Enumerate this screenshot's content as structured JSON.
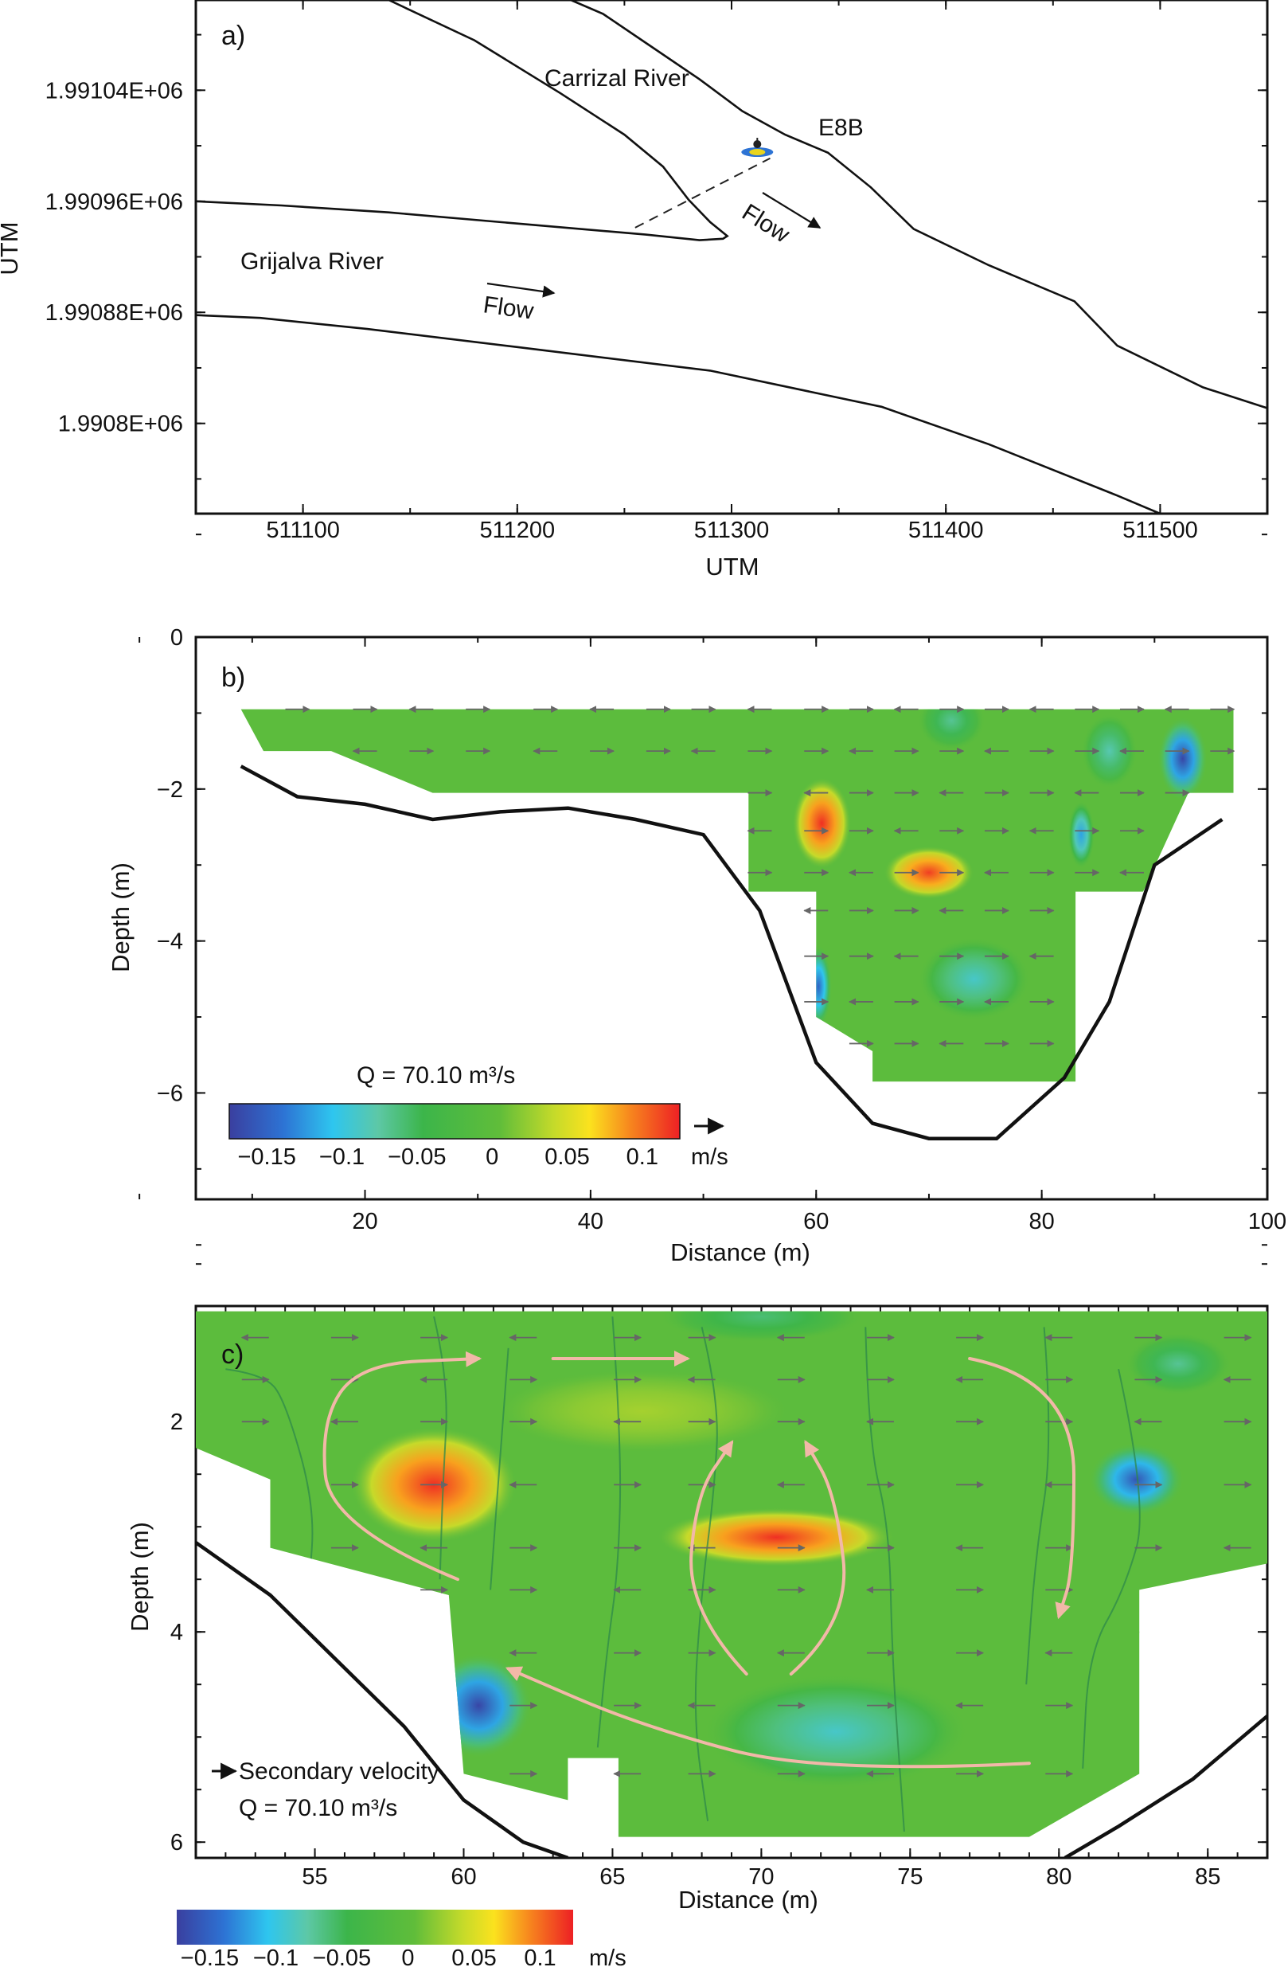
{
  "chart_data": [
    {
      "panel": "a)",
      "type": "map",
      "xlabel": "UTM",
      "ylabel": "UTM",
      "x_ticks": [
        "511100",
        "511200",
        "511300",
        "511400",
        "511500"
      ],
      "x_tick_values": [
        511100,
        511200,
        511300,
        511400,
        511500
      ],
      "y_ticks": [
        "1.99104E+06",
        "1.99096E+06",
        "1.99088E+06",
        "1.9908E+06"
      ],
      "y_tick_values": [
        1991040,
        1990960,
        1990880,
        1990800
      ],
      "xlim": [
        511050,
        511550
      ],
      "ylim": [
        1990735,
        1991105
      ],
      "labels": {
        "carrizal": "Carrizal River",
        "grijalva": "Grijalva River",
        "station": "E8B",
        "flow1": "Flow",
        "flow2": "Flow"
      },
      "banks": {
        "carrizal_left": [
          [
            511140,
            1991105
          ],
          [
            511180,
            1991076
          ],
          [
            511220,
            1991038
          ],
          [
            511250,
            1991008
          ],
          [
            511268,
            1990985
          ],
          [
            511273,
            1990975
          ],
          [
            511280,
            1990961
          ],
          [
            511290,
            1990945
          ],
          [
            511298,
            1990935
          ],
          [
            511296,
            1990933
          ],
          [
            511285,
            1990932
          ],
          [
            511260,
            1990936
          ],
          [
            511200,
            1990944
          ],
          [
            511140,
            1990952
          ],
          [
            511090,
            1990957
          ],
          [
            511050,
            1990960
          ]
        ],
        "carrizal_right": [
          [
            511225,
            1991105
          ],
          [
            511240,
            1991095
          ],
          [
            511262,
            1991072
          ],
          [
            511285,
            1991048
          ],
          [
            511305,
            1991025
          ],
          [
            511325,
            1991008
          ],
          [
            511345,
            1990995
          ],
          [
            511365,
            1990970
          ],
          [
            511385,
            1990940
          ],
          [
            511420,
            1990914
          ],
          [
            511460,
            1990888
          ],
          [
            511480,
            1990856
          ],
          [
            511520,
            1990826
          ],
          [
            511550,
            1990811
          ]
        ],
        "grijalva_right": [
          [
            511050,
            1990878
          ],
          [
            511080,
            1990876
          ],
          [
            511130,
            1990868
          ],
          [
            511200,
            1990855
          ],
          [
            511290,
            1990838
          ],
          [
            511370,
            1990812
          ],
          [
            511420,
            1990785
          ],
          [
            511480,
            1990748
          ],
          [
            511500,
            1990735
          ]
        ]
      },
      "transect": [
        [
          511255,
          1990941
        ],
        [
          511318,
          1990991
        ]
      ],
      "station_pos": [
        511312,
        1991000
      ]
    },
    {
      "panel": "b)",
      "type": "contour",
      "xlabel": "Distance (m)",
      "ylabel": "Depth (m)",
      "x_ticks": [
        "20",
        "40",
        "60",
        "80",
        "100"
      ],
      "x_tick_values": [
        20,
        40,
        60,
        80,
        100
      ],
      "y_ticks": [
        "0",
        "−2",
        "−4",
        "−6"
      ],
      "y_tick_values": [
        0,
        -2,
        -4,
        -6
      ],
      "xlim": [
        5,
        100
      ],
      "ylim": [
        -7.4,
        0
      ],
      "annotation": "Q = 70.10 m³/s",
      "colorbar": {
        "ticks": [
          "−0.15",
          "−0.1",
          "−0.05",
          "0",
          "0.05",
          "0.1"
        ],
        "tick_values": [
          -0.15,
          -0.1,
          -0.05,
          0,
          0.05,
          0.1
        ],
        "range": [
          -0.175,
          0.125
        ],
        "unit": "m/s"
      },
      "bed_profile": [
        [
          9,
          -1.7
        ],
        [
          14,
          -2.1
        ],
        [
          20,
          -2.2
        ],
        [
          26,
          -2.4
        ],
        [
          32,
          -2.3
        ],
        [
          38,
          -2.25
        ],
        [
          44,
          -2.4
        ],
        [
          50,
          -2.6
        ],
        [
          55,
          -3.6
        ],
        [
          60,
          -5.6
        ],
        [
          65,
          -6.4
        ],
        [
          70,
          -6.6
        ],
        [
          76,
          -6.6
        ],
        [
          82,
          -5.8
        ],
        [
          86,
          -4.8
        ],
        [
          90,
          -3.0
        ],
        [
          96,
          -2.4
        ]
      ],
      "data_region": [
        [
          9,
          -0.95
        ],
        [
          97,
          -0.95
        ],
        [
          97,
          -2.05
        ],
        [
          93,
          -2.05
        ],
        [
          89,
          -3.35
        ],
        [
          83,
          -3.35
        ],
        [
          83,
          -5.85
        ],
        [
          65,
          -5.85
        ],
        [
          65,
          -5.45
        ],
        [
          60,
          -5.0
        ],
        [
          60,
          -3.35
        ],
        [
          54,
          -3.35
        ],
        [
          54,
          -2.05
        ],
        [
          28,
          -2.05
        ],
        [
          26,
          -2.05
        ],
        [
          17,
          -1.5
        ],
        [
          11,
          -1.5
        ],
        [
          9,
          -0.95
        ]
      ],
      "field_hotspots": [
        [
          60.5,
          -2.45,
          0.12,
          2.6,
          0.6
        ],
        [
          70.0,
          -3.1,
          0.115,
          4.0,
          0.35
        ],
        [
          92.5,
          -1.6,
          -0.17,
          2.2,
          0.55
        ],
        [
          60.2,
          -4.6,
          -0.15,
          1.2,
          0.55
        ],
        [
          83.5,
          -2.6,
          -0.12,
          1.2,
          0.45
        ],
        [
          74.0,
          -4.5,
          -0.09,
          5.0,
          0.55
        ],
        [
          72.0,
          -1.1,
          -0.07,
          3.0,
          0.4
        ],
        [
          86.0,
          -1.5,
          -0.08,
          2.5,
          0.5
        ]
      ],
      "vector_rows": [
        -0.95,
        -1.5,
        -2.05,
        -2.55,
        -3.1,
        -3.6,
        -4.2,
        -4.8,
        -5.35,
        -5.85
      ],
      "vector_cols": [
        9,
        14,
        20,
        25,
        30,
        36,
        41,
        46,
        50,
        55,
        60,
        64,
        68,
        72,
        76,
        80,
        84,
        88,
        92,
        96
      ]
    },
    {
      "panel": "c)",
      "type": "contour",
      "xlabel": "Distance (m)",
      "ylabel": "Depth (m)",
      "x_ticks": [
        "55",
        "60",
        "65",
        "70",
        "75",
        "80",
        "85"
      ],
      "x_tick_values": [
        55,
        60,
        65,
        70,
        75,
        80,
        85
      ],
      "y_ticks": [
        "2",
        "4",
        "6"
      ],
      "y_tick_values": [
        2,
        4,
        6
      ],
      "xlim": [
        51,
        87
      ],
      "ylim": [
        6.15,
        0.9
      ],
      "annotation_secondary": "Secondary velocity",
      "annotation": "Q = 70.10 m³/s",
      "colorbar": {
        "ticks": [
          "−0.15",
          "−0.1",
          "−0.05",
          "0",
          "0.05",
          "0.1"
        ],
        "tick_values": [
          -0.15,
          -0.1,
          -0.05,
          0,
          0.05,
          0.1
        ],
        "range": [
          -0.175,
          0.125
        ],
        "unit": "m/s"
      },
      "data_region": [
        [
          51,
          0.95
        ],
        [
          87,
          0.95
        ],
        [
          87,
          3.35
        ],
        [
          82.7,
          3.6
        ],
        [
          82.7,
          5.35
        ],
        [
          79,
          5.95
        ],
        [
          65.2,
          5.95
        ],
        [
          65.2,
          5.2
        ],
        [
          63.5,
          5.2
        ],
        [
          63.5,
          5.6
        ],
        [
          60,
          5.35
        ],
        [
          59.5,
          3.65
        ],
        [
          53.5,
          3.2
        ],
        [
          53.5,
          2.55
        ],
        [
          51,
          2.25
        ]
      ],
      "bank_left": [
        [
          51,
          3.15
        ],
        [
          53.5,
          3.65
        ],
        [
          58,
          4.9
        ],
        [
          60,
          5.6
        ],
        [
          62,
          6.0
        ],
        [
          63.5,
          6.15
        ]
      ],
      "bank_right": [
        [
          80.2,
          6.15
        ],
        [
          82,
          5.85
        ],
        [
          84.5,
          5.4
        ],
        [
          87,
          4.8
        ]
      ],
      "field_hotspots": [
        [
          59.0,
          2.6,
          0.12,
          2.8,
          0.55
        ],
        [
          70.5,
          3.1,
          0.12,
          4.0,
          0.28
        ],
        [
          82.6,
          2.55,
          -0.16,
          1.6,
          0.35
        ],
        [
          60.5,
          4.7,
          -0.17,
          1.8,
          0.5
        ],
        [
          72.5,
          4.95,
          -0.09,
          4.5,
          0.55
        ],
        [
          70.0,
          1.0,
          -0.06,
          3.5,
          0.25
        ],
        [
          84.0,
          1.45,
          -0.07,
          1.8,
          0.3
        ],
        [
          66.0,
          1.9,
          0.03,
          5.0,
          0.4
        ]
      ],
      "vector_rows": [
        1.2,
        1.6,
        2.0,
        2.6,
        3.2,
        3.6,
        4.2,
        4.7,
        5.35,
        5.95
      ],
      "vector_cols": [
        53,
        56,
        59,
        62,
        65.5,
        68,
        71,
        74,
        77,
        80,
        83,
        86
      ],
      "streamlines": [
        [
          [
            52.0,
            1.5
          ],
          [
            53.3,
            1.55
          ],
          [
            54.0,
            1.8
          ],
          [
            55.0,
            2.8
          ],
          [
            54.8,
            3.6
          ]
        ],
        [
          [
            59.0,
            1.0
          ],
          [
            59.5,
            1.6
          ],
          [
            59.3,
            2.6
          ],
          [
            59.2,
            3.5
          ]
        ],
        [
          [
            61.5,
            1.3
          ],
          [
            61.2,
            2.4
          ],
          [
            60.9,
            3.6
          ]
        ],
        [
          [
            65.0,
            1.0
          ],
          [
            65.3,
            2.2
          ],
          [
            65.2,
            3.4
          ],
          [
            64.8,
            4.2
          ],
          [
            64.5,
            5.1
          ]
        ],
        [
          [
            68.0,
            1.1
          ],
          [
            68.6,
            1.8
          ],
          [
            68.4,
            2.7
          ],
          [
            68.0,
            3.6
          ],
          [
            67.7,
            4.8
          ],
          [
            68.2,
            5.8
          ]
        ],
        [
          [
            73.5,
            1.1
          ],
          [
            73.6,
            2.2
          ],
          [
            74.3,
            3.0
          ],
          [
            74.4,
            4.3
          ],
          [
            74.8,
            5.9
          ]
        ],
        [
          [
            79.5,
            1.1
          ],
          [
            79.8,
            2.2
          ],
          [
            79.2,
            3.3
          ],
          [
            78.9,
            4.5
          ]
        ],
        [
          [
            82.0,
            1.5
          ],
          [
            83.0,
            2.8
          ],
          [
            82.2,
            3.6
          ],
          [
            81.0,
            4.2
          ],
          [
            80.8,
            5.3
          ]
        ],
        [
          [
            58.5,
            4.0
          ],
          [
            57.9,
            4.3
          ],
          [
            57.7,
            4.9
          ],
          [
            57.8,
            5.2
          ]
        ],
        [
          [
            82.7,
            4.0
          ],
          [
            84.0,
            4.1
          ],
          [
            84.4,
            4.7
          ],
          [
            84.3,
            5.2
          ]
        ]
      ],
      "circulation_arrows": [
        [
          [
            59.8,
            3.5
          ],
          [
            55.5,
            3.0
          ],
          [
            55.2,
            2.0
          ],
          [
            56.5,
            1.45
          ],
          [
            60.5,
            1.4
          ]
        ],
        [
          [
            63.0,
            1.4
          ],
          [
            67.5,
            1.4
          ]
        ],
        [
          [
            77.0,
            1.4
          ],
          [
            80.5,
            1.6
          ],
          [
            80.5,
            3.4
          ],
          [
            80.0,
            3.85
          ]
        ],
        [
          [
            69.5,
            4.4
          ],
          [
            67.5,
            3.8
          ],
          [
            67.8,
            2.7
          ],
          [
            69.0,
            2.2
          ]
        ],
        [
          [
            71.0,
            4.4
          ],
          [
            73.0,
            3.9
          ],
          [
            72.5,
            2.7
          ],
          [
            71.5,
            2.2
          ]
        ],
        [
          [
            79.0,
            5.25
          ],
          [
            72.0,
            5.35
          ],
          [
            66.0,
            4.9
          ],
          [
            61.5,
            4.35
          ]
        ]
      ]
    }
  ]
}
